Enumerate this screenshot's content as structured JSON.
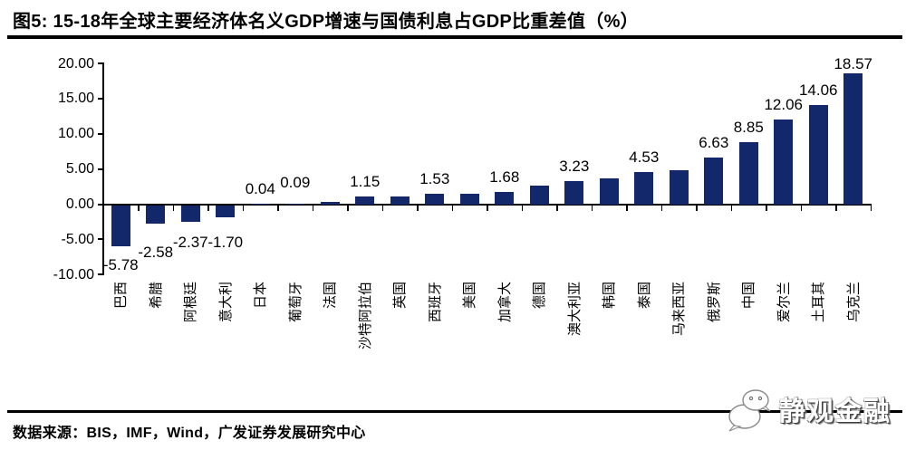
{
  "chart_data": {
    "type": "bar",
    "title": "图5:  15-18年全球主要经济体名义GDP增速与国债利息占GDP比重差值（%）",
    "categories": [
      "巴西",
      "希腊",
      "阿根廷",
      "意大利",
      "日本",
      "葡萄牙",
      "法国",
      "沙特阿拉伯",
      "英国",
      "西班牙",
      "美国",
      "加拿大",
      "德国",
      "澳大利亚",
      "韩国",
      "泰国",
      "马来西亚",
      "俄罗斯",
      "中国",
      "爱尔兰",
      "土耳其",
      "乌克兰"
    ],
    "values": [
      -5.78,
      -2.58,
      -2.37,
      -1.7,
      0.04,
      0.09,
      0.35,
      1.15,
      1.1,
      1.53,
      1.5,
      1.68,
      2.7,
      3.23,
      3.65,
      4.53,
      4.8,
      6.63,
      8.85,
      12.06,
      14.06,
      18.57
    ],
    "data_labels": [
      "-5.78",
      "-2.58",
      "-2.37",
      "-1.70",
      "0.04",
      "0.09",
      "",
      "1.15",
      "",
      "1.53",
      "",
      "1.68",
      "",
      "3.23",
      "",
      "4.53",
      "",
      "6.63",
      "8.85",
      "12.06",
      "14.06",
      "18.57"
    ],
    "unlabeled_values_estimated": true,
    "y_tick_labels": [
      "20.00",
      "15.00",
      "10.00",
      "5.00",
      "0.00",
      "-5.00",
      "-10.00"
    ],
    "ylim": [
      -10,
      20
    ],
    "bar_color": "#13286B",
    "axis_color": "#000000",
    "grid": false,
    "legend": "none"
  },
  "footer": {
    "source": "数据来源：BIS，IMF，Wind，广发证券发展研究中心",
    "watermark": "静观金融"
  }
}
